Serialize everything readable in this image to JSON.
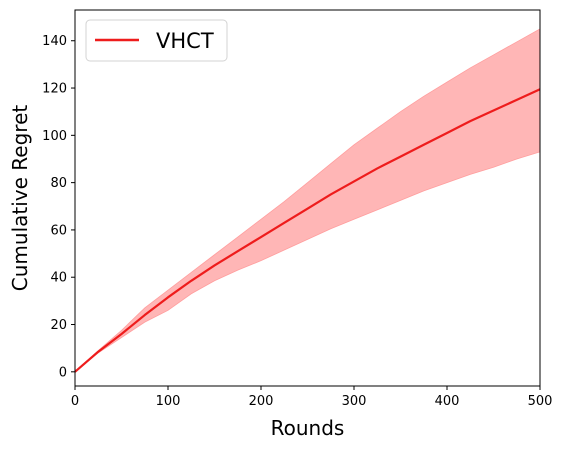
{
  "chart_data": {
    "type": "line",
    "title": "",
    "xlabel": "Rounds",
    "ylabel": "Cumulative Regret",
    "xlim": [
      0,
      500
    ],
    "ylim": [
      -6,
      153
    ],
    "xticks": [
      0,
      100,
      200,
      300,
      400,
      500
    ],
    "yticks": [
      0,
      20,
      40,
      60,
      80,
      100,
      120,
      140
    ],
    "grid": false,
    "legend_position": "upper-left",
    "series": [
      {
        "name": "VHCT",
        "color": "#ee1c1c",
        "band_color": "#ff9e9e",
        "x": [
          0,
          25,
          50,
          75,
          100,
          125,
          150,
          175,
          200,
          225,
          250,
          275,
          300,
          325,
          350,
          375,
          400,
          425,
          450,
          475,
          500
        ],
        "values": [
          0,
          8.5,
          16,
          24,
          31.5,
          38.5,
          45,
          51,
          57,
          63,
          69,
          75,
          80.5,
          86,
          91,
          96,
          101,
          106,
          110.5,
          115,
          119.5
        ],
        "lower": [
          0,
          8,
          14.5,
          21,
          26,
          33,
          38.5,
          43,
          47,
          51.5,
          56,
          60.5,
          64.5,
          68.5,
          72.5,
          76.5,
          80,
          83.5,
          86.5,
          90,
          93
        ],
        "upper": [
          0,
          9,
          17.5,
          27,
          34.5,
          42,
          49.5,
          57,
          64.5,
          72,
          80,
          88,
          96,
          103,
          110,
          116.5,
          122.5,
          128.5,
          134,
          139.5,
          145
        ]
      }
    ]
  }
}
